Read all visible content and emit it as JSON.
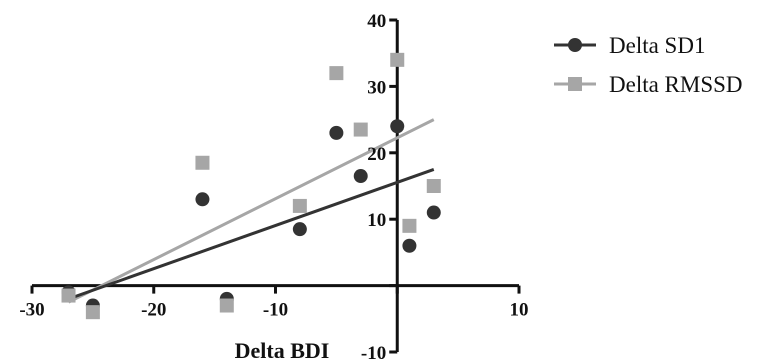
{
  "chart_data": {
    "type": "scatter",
    "title": "",
    "xlabel": "Delta BDI",
    "ylabel": "",
    "xlim": [
      -30,
      10
    ],
    "ylim": [
      -10,
      40
    ],
    "xticks": [
      -30,
      -20,
      -10,
      0,
      10
    ],
    "xtick_labels": [
      "-30",
      "-20",
      "-10",
      "",
      "10"
    ],
    "yticks": [
      -10,
      0,
      10,
      20,
      30,
      40
    ],
    "ytick_labels": [
      "-10",
      "",
      "10",
      "20",
      "30",
      "40"
    ],
    "grid": false,
    "legend_position": "top-right",
    "series": [
      {
        "name": "Delta SD1",
        "marker": "circle",
        "color": "#333333",
        "points": [
          {
            "x": -27,
            "y": -1
          },
          {
            "x": -25,
            "y": -3
          },
          {
            "x": -16,
            "y": 13
          },
          {
            "x": -14,
            "y": -2
          },
          {
            "x": -8,
            "y": 8.5
          },
          {
            "x": -5,
            "y": 23
          },
          {
            "x": -3,
            "y": 16.5
          },
          {
            "x": 0,
            "y": 24
          },
          {
            "x": 1,
            "y": 6
          },
          {
            "x": 3,
            "y": 11
          }
        ],
        "fit": {
          "x": [
            -27,
            3
          ],
          "y": [
            -2,
            17.5
          ]
        }
      },
      {
        "name": "Delta RMSSD",
        "marker": "square",
        "color": "#a6a6a6",
        "points": [
          {
            "x": -27,
            "y": -1.5
          },
          {
            "x": -25,
            "y": -4
          },
          {
            "x": -16,
            "y": 18.5
          },
          {
            "x": -14,
            "y": -3
          },
          {
            "x": -8,
            "y": 12
          },
          {
            "x": -5,
            "y": 32
          },
          {
            "x": -3,
            "y": 23.5
          },
          {
            "x": 0,
            "y": 34
          },
          {
            "x": 1,
            "y": 9
          },
          {
            "x": 3,
            "y": 15
          }
        ],
        "fit": {
          "x": [
            -27,
            3
          ],
          "y": [
            -2.5,
            25
          ]
        }
      }
    ]
  }
}
